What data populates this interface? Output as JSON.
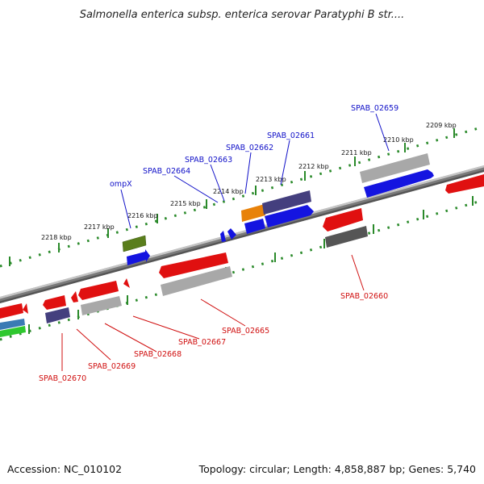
{
  "title": "Salmonella enterica subsp. enterica serovar Paratyphi B str....",
  "footer": {
    "accession": "Accession: NC_010102",
    "summary": "Topology: circular; Length: 4,858,887 bp; Genes: 5,740"
  },
  "colors": {
    "background": "#ffffff",
    "backbone": "#777777",
    "tick": "#2a8a2a",
    "forward_label": "#1010c8",
    "reverse_label": "#d01010",
    "red": "#e01010",
    "blue": "#1414e0",
    "dark_slate": "#443f7e",
    "grey": "#a8a8a8",
    "dark_grey": "#555555",
    "olive": "#5a7e1c",
    "orange": "#e8820a",
    "steel_blue": "#3a7ab4",
    "green": "#2ec82e"
  },
  "scale_labels": [
    "2218 kbp",
    "2217 kbp",
    "2216 kbp",
    "2215 kbp",
    "2214 kbp",
    "2213 kbp",
    "2212 kbp",
    "2211 kbp",
    "2210 kbp",
    "2209 kbp"
  ],
  "forward_labels": [
    "ompX",
    "SPAB_02664",
    "SPAB_02663",
    "SPAB_02662",
    "SPAB_02661",
    "SPAB_02659"
  ],
  "reverse_labels": [
    "SPAB_02670",
    "SPAB_02669",
    "SPAB_02668",
    "SPAB_02667",
    "SPAB_02665",
    "SPAB_02660"
  ]
}
